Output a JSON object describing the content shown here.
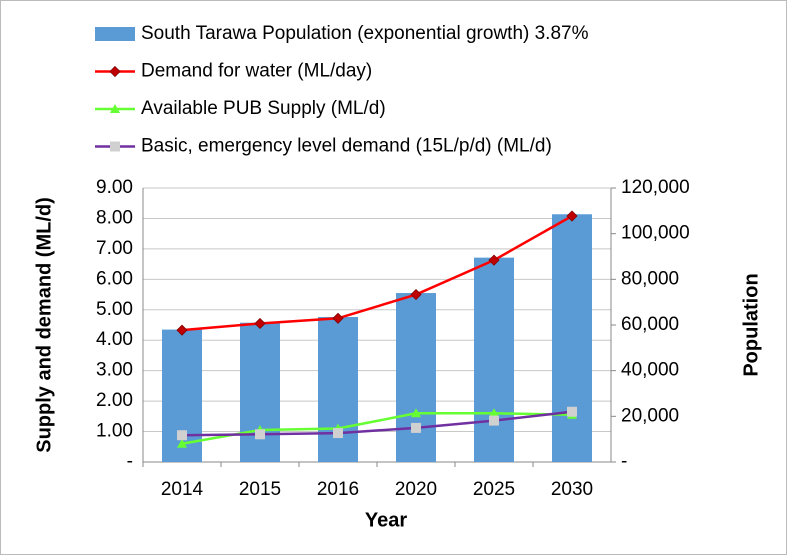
{
  "chart_data": {
    "type": "bar",
    "categories": [
      "2014",
      "2015",
      "2016",
      "2020",
      "2025",
      "2030"
    ],
    "series": [
      {
        "name": "South Tarawa Population (exponential growth) 3.87%",
        "type": "bar",
        "axis": "y2",
        "color": "#5b9bd5",
        "values": [
          58000,
          61000,
          63500,
          74000,
          89500,
          108500
        ]
      },
      {
        "name": "Demand for water (ML/day)",
        "type": "line",
        "color": "#ff0000",
        "marker": "diamond",
        "marker_color": "#c00000",
        "values": [
          4.33,
          4.55,
          4.72,
          5.5,
          6.63,
          8.08
        ]
      },
      {
        "name": "Available PUB Supply (ML/d)",
        "type": "line",
        "color": "#66ff33",
        "marker": "triangle",
        "marker_color": "#66ff33",
        "values": [
          0.6,
          1.05,
          1.1,
          1.6,
          1.6,
          1.55
        ]
      },
      {
        "name": "Basic, emergency level demand (15L/p/d) (ML/d)",
        "type": "line",
        "color": "#7030a0",
        "marker": "square",
        "marker_color": "#d0d0d0",
        "values": [
          0.88,
          0.91,
          0.95,
          1.12,
          1.36,
          1.65
        ]
      }
    ],
    "xlabel": "Year",
    "ylabel": "Supply and demand (ML/d)",
    "y2label": "Population",
    "ylim": [
      0,
      9
    ],
    "yticks": [
      {
        "value": 0,
        "label": "-"
      },
      {
        "value": 1,
        "label": "1.00"
      },
      {
        "value": 2,
        "label": "2.00"
      },
      {
        "value": 3,
        "label": "3.00"
      },
      {
        "value": 4,
        "label": "4.00"
      },
      {
        "value": 5,
        "label": "5.00"
      },
      {
        "value": 6,
        "label": "6.00"
      },
      {
        "value": 7,
        "label": "7.00"
      },
      {
        "value": 8,
        "label": "8.00"
      },
      {
        "value": 9,
        "label": "9.00"
      }
    ],
    "y2lim": [
      0,
      120000
    ],
    "y2ticks": [
      {
        "value": 0,
        "label": "-"
      },
      {
        "value": 20000,
        "label": "20,000"
      },
      {
        "value": 40000,
        "label": "40,000"
      },
      {
        "value": 60000,
        "label": "60,000"
      },
      {
        "value": 80000,
        "label": "80,000"
      },
      {
        "value": 100000,
        "label": "100,000"
      },
      {
        "value": 120000,
        "label": "120,000"
      }
    ],
    "grid": true,
    "legend": "top"
  }
}
